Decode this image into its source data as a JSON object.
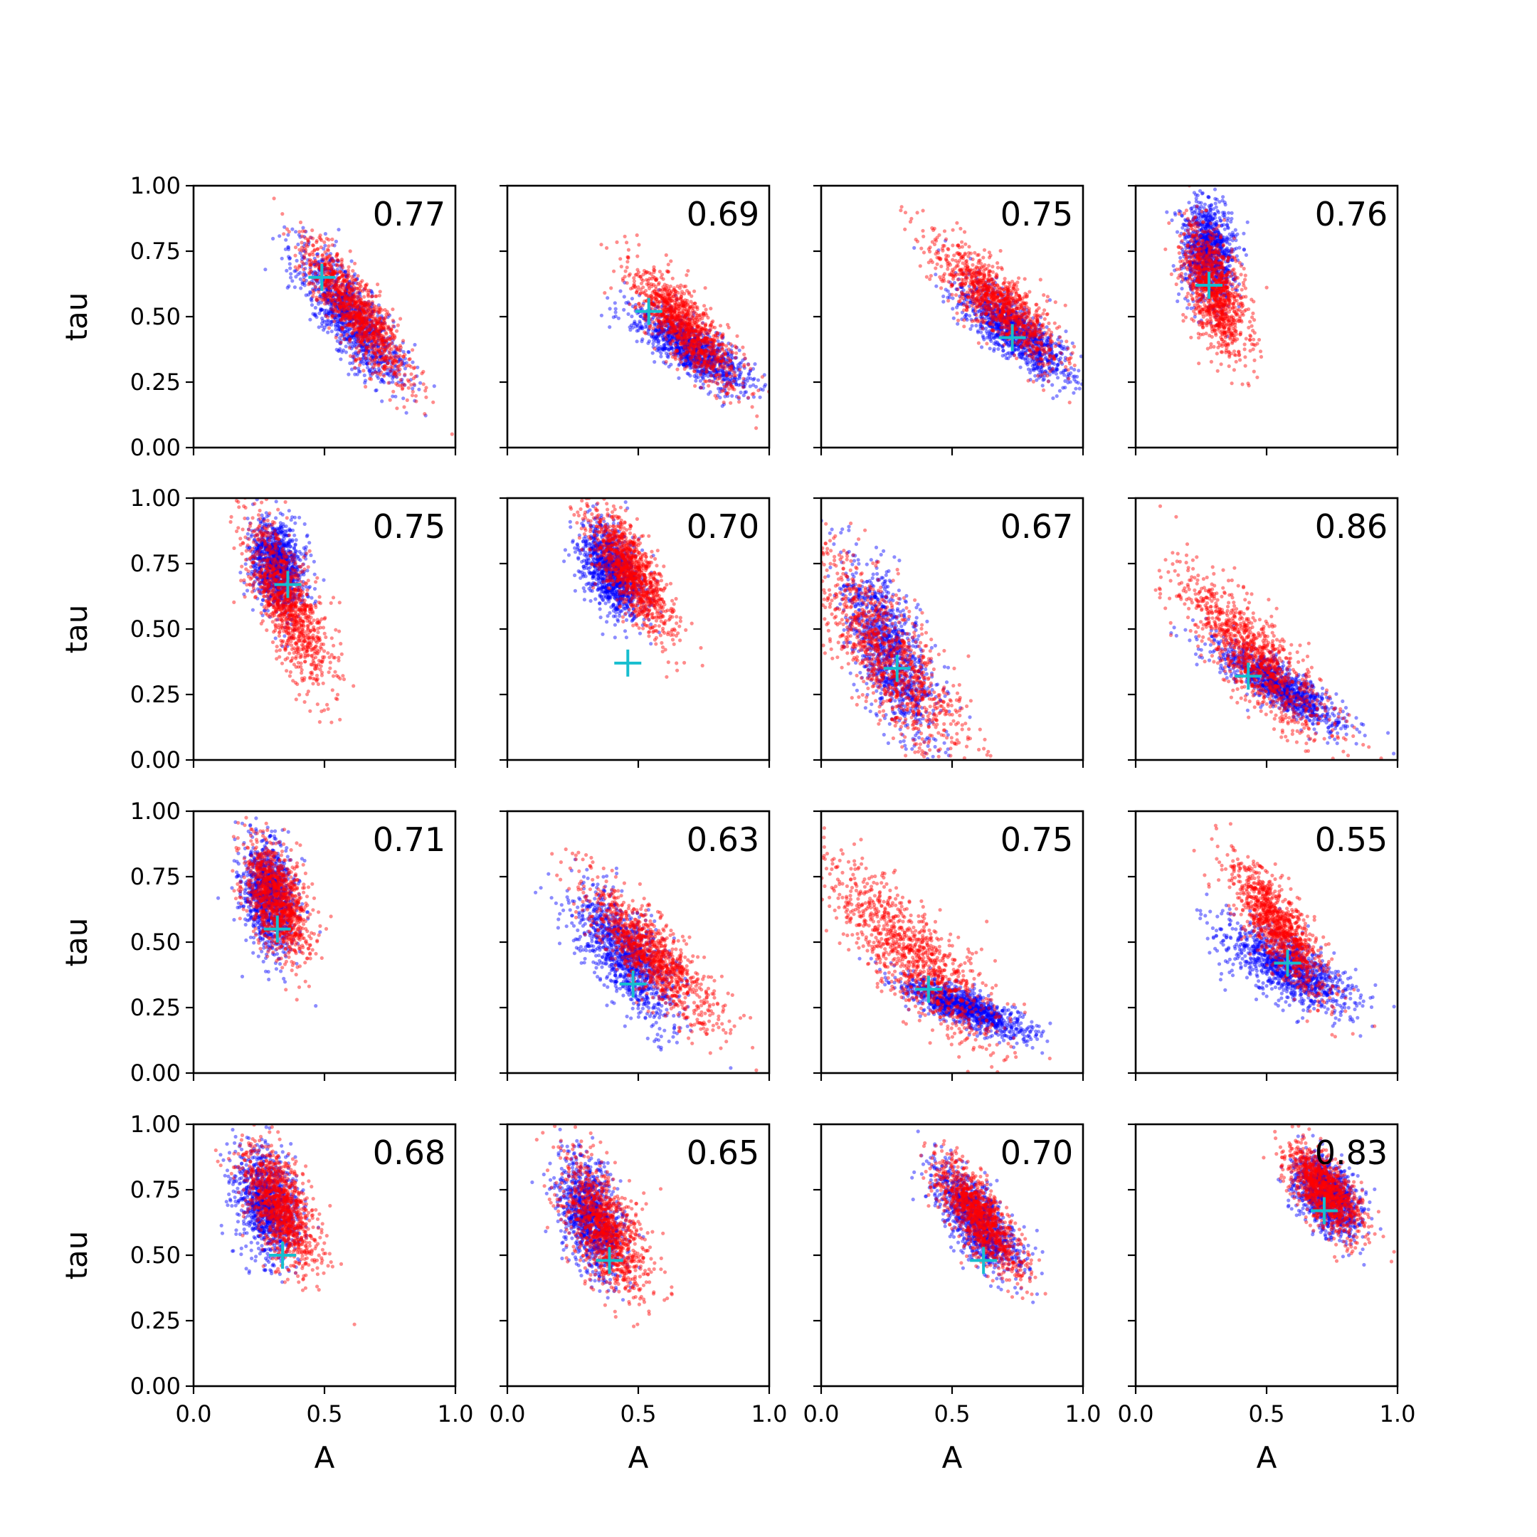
{
  "figure": {
    "xlabel": "A",
    "ylabel": "tau",
    "xlim": [
      0,
      1
    ],
    "ylim": [
      0,
      1
    ],
    "x_ticks": [
      "0.0",
      "0.5",
      "1.0"
    ],
    "y_ticks": [
      "0.00",
      "0.25",
      "0.50",
      "0.75",
      "1.00"
    ],
    "series_colors": {
      "blue": "#0000ff",
      "red": "#ff0000",
      "marker": "#17becf"
    }
  },
  "chart_data": [
    {
      "type": "scatter",
      "label": "0.77",
      "marker": [
        0.49,
        0.65
      ],
      "blue": {
        "cx": 0.6,
        "cy": 0.5,
        "sx": 0.1,
        "sy": 0.14,
        "slope": -1.1
      },
      "red": {
        "cx": 0.62,
        "cy": 0.52,
        "sx": 0.1,
        "sy": 0.13,
        "slope": -1.2
      }
    },
    {
      "type": "scatter",
      "label": "0.69",
      "marker": [
        0.54,
        0.52
      ],
      "blue": {
        "cx": 0.7,
        "cy": 0.38,
        "sx": 0.11,
        "sy": 0.09,
        "slope": -0.6
      },
      "red": {
        "cx": 0.68,
        "cy": 0.46,
        "sx": 0.1,
        "sy": 0.12,
        "slope": -1.0
      }
    },
    {
      "type": "scatter",
      "label": "0.75",
      "marker": [
        0.73,
        0.42
      ],
      "blue": {
        "cx": 0.73,
        "cy": 0.45,
        "sx": 0.11,
        "sy": 0.1,
        "slope": -0.8
      },
      "red": {
        "cx": 0.68,
        "cy": 0.55,
        "sx": 0.12,
        "sy": 0.12,
        "slope": -0.9
      }
    },
    {
      "type": "scatter",
      "label": "0.76",
      "marker": [
        0.28,
        0.62
      ],
      "blue": {
        "cx": 0.28,
        "cy": 0.75,
        "sx": 0.05,
        "sy": 0.18,
        "slope": -0.3
      },
      "red": {
        "cx": 0.3,
        "cy": 0.6,
        "sx": 0.06,
        "sy": 0.18,
        "slope": -1.2
      }
    },
    {
      "type": "scatter",
      "label": "0.75",
      "marker": [
        0.36,
        0.67
      ],
      "blue": {
        "cx": 0.32,
        "cy": 0.75,
        "sx": 0.05,
        "sy": 0.15,
        "slope": -0.4
      },
      "red": {
        "cx": 0.36,
        "cy": 0.6,
        "sx": 0.08,
        "sy": 0.2,
        "slope": -1.6
      }
    },
    {
      "type": "scatter",
      "label": "0.70",
      "marker": [
        0.46,
        0.37
      ],
      "blue": {
        "cx": 0.4,
        "cy": 0.72,
        "sx": 0.06,
        "sy": 0.14,
        "slope": -0.8
      },
      "red": {
        "cx": 0.47,
        "cy": 0.72,
        "sx": 0.08,
        "sy": 0.14,
        "slope": -1.3
      }
    },
    {
      "type": "scatter",
      "label": "0.67",
      "marker": [
        0.29,
        0.35
      ],
      "blue": {
        "cx": 0.26,
        "cy": 0.42,
        "sx": 0.09,
        "sy": 0.22,
        "slope": -1.4
      },
      "red": {
        "cx": 0.25,
        "cy": 0.4,
        "sx": 0.15,
        "sy": 0.22,
        "slope": -1.2
      }
    },
    {
      "type": "scatter",
      "label": "0.86",
      "marker": [
        0.43,
        0.32
      ],
      "blue": {
        "cx": 0.55,
        "cy": 0.28,
        "sx": 0.12,
        "sy": 0.08,
        "slope": -0.6
      },
      "red": {
        "cx": 0.45,
        "cy": 0.4,
        "sx": 0.14,
        "sy": 0.16,
        "slope": -1.0
      }
    },
    {
      "type": "scatter",
      "label": "0.71",
      "marker": [
        0.32,
        0.55
      ],
      "blue": {
        "cx": 0.29,
        "cy": 0.68,
        "sx": 0.05,
        "sy": 0.18,
        "slope": -0.6
      },
      "red": {
        "cx": 0.32,
        "cy": 0.66,
        "sx": 0.06,
        "sy": 0.17,
        "slope": -1.0
      }
    },
    {
      "type": "scatter",
      "label": "0.63",
      "marker": [
        0.48,
        0.34
      ],
      "blue": {
        "cx": 0.45,
        "cy": 0.45,
        "sx": 0.1,
        "sy": 0.16,
        "slope": -1.0
      },
      "red": {
        "cx": 0.55,
        "cy": 0.45,
        "sx": 0.12,
        "sy": 0.14,
        "slope": -1.0
      }
    },
    {
      "type": "scatter",
      "label": "0.75",
      "marker": [
        0.41,
        0.32
      ],
      "blue": {
        "cx": 0.55,
        "cy": 0.25,
        "sx": 0.12,
        "sy": 0.06,
        "slope": -0.4
      },
      "red": {
        "cx": 0.35,
        "cy": 0.45,
        "sx": 0.17,
        "sy": 0.18,
        "slope": -1.0
      }
    },
    {
      "type": "scatter",
      "label": "0.55",
      "marker": [
        0.58,
        0.42
      ],
      "blue": {
        "cx": 0.58,
        "cy": 0.4,
        "sx": 0.12,
        "sy": 0.11,
        "slope": -0.5
      },
      "red": {
        "cx": 0.55,
        "cy": 0.55,
        "sx": 0.09,
        "sy": 0.14,
        "slope": -1.2
      }
    },
    {
      "type": "scatter",
      "label": "0.68",
      "marker": [
        0.34,
        0.5
      ],
      "blue": {
        "cx": 0.28,
        "cy": 0.7,
        "sx": 0.06,
        "sy": 0.17,
        "slope": -0.5
      },
      "red": {
        "cx": 0.33,
        "cy": 0.68,
        "sx": 0.07,
        "sy": 0.17,
        "slope": -1.0
      }
    },
    {
      "type": "scatter",
      "label": "0.65",
      "marker": [
        0.39,
        0.48
      ],
      "blue": {
        "cx": 0.32,
        "cy": 0.65,
        "sx": 0.06,
        "sy": 0.18,
        "slope": -0.7
      },
      "red": {
        "cx": 0.37,
        "cy": 0.6,
        "sx": 0.08,
        "sy": 0.18,
        "slope": -1.0
      }
    },
    {
      "type": "scatter",
      "label": "0.70",
      "marker": [
        0.62,
        0.48
      ],
      "blue": {
        "cx": 0.6,
        "cy": 0.63,
        "sx": 0.08,
        "sy": 0.13,
        "slope": -1.0
      },
      "red": {
        "cx": 0.6,
        "cy": 0.65,
        "sx": 0.08,
        "sy": 0.12,
        "slope": -1.1
      }
    },
    {
      "type": "scatter",
      "label": "0.83",
      "marker": [
        0.72,
        0.67
      ],
      "blue": {
        "cx": 0.73,
        "cy": 0.73,
        "sx": 0.06,
        "sy": 0.12,
        "slope": -0.6
      },
      "red": {
        "cx": 0.72,
        "cy": 0.75,
        "sx": 0.07,
        "sy": 0.12,
        "slope": -0.9
      }
    }
  ]
}
